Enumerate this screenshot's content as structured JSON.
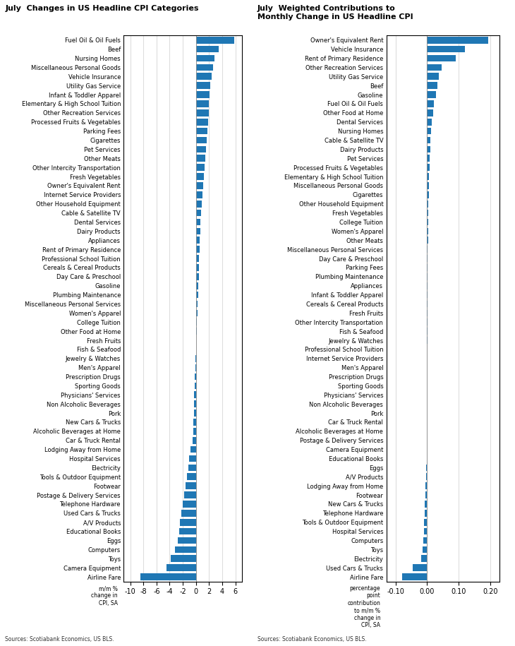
{
  "chart_data": [
    {
      "type": "bar",
      "orientation": "horizontal",
      "title": "July  Changes in US Headline CPI Categories",
      "annotations": [
        "m/m %\nchange in\nCPI, SA",
        "Sources: Scotiabank Economics, US BLS."
      ],
      "categories": [
        "Fuel Oil & Oil Fuels",
        "Beef",
        "Nursing Homes",
        "Miscellaneous Personal Goods",
        "Vehicle Insurance",
        "Utility Gas Service",
        "Infant & Toddler Apparel",
        "Elementary & High School Tuition",
        "Other Recreation Services",
        "Processed Fruits & Vegetables",
        "Parking Fees",
        "Cigarettes",
        "Pet Services",
        "Other Meats",
        "Other Intercity Transportation",
        "Fresh Vegetables",
        "Owner's Equivalent Rent",
        "Internet Service Providers",
        "Other Household Equipment",
        "Cable & Satellite TV",
        "Dental Services",
        "Dairy Products",
        "Appliances",
        "Rent of Primary Residence",
        "Professional School Tuition",
        "Cereals & Cereal Products",
        "Day Care & Preschool",
        "Gasoline",
        "Plumbing Maintenance",
        "Miscellaneous Personal Services",
        "Women's Apparel",
        "College Tuition",
        "Other Food at Home",
        "Fresh Fruits",
        "Fish & Seafood",
        "Jewelry & Watches",
        "Men's Apparel",
        "Prescription Drugs",
        "Sporting Goods",
        "Physicians' Services",
        "Non Alcoholic Beverages",
        "Pork",
        "New Cars & Trucks",
        "Alcoholic Beverages at Home",
        "Car & Truck Rental",
        "Lodging Away from Home",
        "Hospital Services",
        "Electricity",
        "Tools & Outdoor Equipment",
        "Footwear",
        "Postage & Delivery Services",
        "Telephone Hardware",
        "Used Cars & Trucks",
        "A/V Products",
        "Educational Books",
        "Eggs",
        "Computers",
        "Toys",
        "Camera Equipment",
        "Airline Fare"
      ],
      "values": [
        5.8,
        3.5,
        2.8,
        2.6,
        2.4,
        2.2,
        2.1,
        2.0,
        1.9,
        1.8,
        1.7,
        1.6,
        1.5,
        1.4,
        1.3,
        1.2,
        1.1,
        1.0,
        0.9,
        0.8,
        0.7,
        0.65,
        0.6,
        0.55,
        0.5,
        0.45,
        0.4,
        0.35,
        0.3,
        0.25,
        0.2,
        0.15,
        0.1,
        0.05,
        0.0,
        -0.05,
        -0.1,
        -0.15,
        -0.2,
        -0.25,
        -0.3,
        -0.35,
        -0.4,
        -0.45,
        -0.5,
        -0.8,
        -1.0,
        -1.2,
        -1.4,
        -1.6,
        -1.8,
        -2.0,
        -2.2,
        -2.4,
        -2.6,
        -2.8,
        -3.2,
        -3.8,
        -4.5,
        -8.5
      ],
      "xlim": [
        -11,
        7
      ],
      "xticks": [
        -10,
        -8,
        -6,
        -4,
        -2,
        0,
        2,
        4,
        6
      ],
      "grid": true
    },
    {
      "type": "bar",
      "orientation": "horizontal",
      "title": "July  Weighted Contributions to\nMonthly Change in US Headline CPI",
      "annotations": [
        "percentage\npoint\ncontribution\nto m/m %\nchange in\nCPI, SA",
        "Sources: Scotiabank Economics, US BLS."
      ],
      "categories": [
        "Owner's Equivalent Rent",
        "Vehicle Insurance",
        "Rent of Primary Residence",
        "Other Recreation Services",
        "Utility Gas Service",
        "Beef",
        "Gasoline",
        "Fuel Oil & Oil Fuels",
        "Other Food at Home",
        "Dental Services",
        "Nursing Homes",
        "Cable & Satellite TV",
        "Dairy Products",
        "Pet Services",
        "Processed Fruits & Vegetables",
        "Elementary & High School Tuition",
        "Miscellaneous Personal Goods",
        "Cigarettes",
        "Other Household Equipment",
        "Fresh Vegetables",
        "College Tuition",
        "Women's Apparel",
        "Other Meats",
        "Miscellaneous Personal Services",
        "Day Care & Preschool",
        "Parking Fees",
        "Plumbing Maintenance",
        "Appliances",
        "Infant & Toddler Apparel",
        "Cereals & Cereal Products",
        "Fresh Fruits",
        "Other Intercity Transportation",
        "Fish & Seafood",
        "Jewelry & Watches",
        "Professional School Tuition",
        "Internet Service Providers",
        "Men's Apparel",
        "Prescription Drugs",
        "Sporting Goods",
        "Physicians' Services",
        "Non Alcoholic Beverages",
        "Pork",
        "Car & Truck Rental",
        "Alcoholic Beverages at Home",
        "Postage & Delivery Services",
        "Camera Equipment",
        "Educational Books",
        "Eggs",
        "A/V Products",
        "Lodging Away from Home",
        "Footwear",
        "New Cars & Trucks",
        "Telephone Hardware",
        "Tools & Outdoor Equipment",
        "Hospital Services",
        "Computers",
        "Toys",
        "Electricity",
        "Used Cars & Trucks",
        "Airline Fare"
      ],
      "values": [
        0.195,
        0.12,
        0.09,
        0.045,
        0.038,
        0.032,
        0.028,
        0.022,
        0.018,
        0.015,
        0.012,
        0.01,
        0.009,
        0.008,
        0.007,
        0.006,
        0.005,
        0.005,
        0.004,
        0.004,
        0.003,
        0.003,
        0.003,
        0.002,
        0.002,
        0.002,
        0.002,
        0.001,
        0.001,
        0.001,
        0.001,
        0.001,
        0.001,
        0.001,
        0.0,
        0.0,
        0.0,
        0.0,
        0.0,
        0.0,
        -0.001,
        -0.001,
        -0.002,
        -0.002,
        -0.002,
        -0.002,
        -0.002,
        -0.003,
        -0.003,
        -0.005,
        -0.006,
        -0.007,
        -0.008,
        -0.009,
        -0.01,
        -0.012,
        -0.015,
        -0.02,
        -0.045,
        -0.08
      ],
      "xlim": [
        -0.13,
        0.23
      ],
      "xticks": [
        {
          "value": -0.1,
          "label": "-0.10"
        },
        {
          "value": 0.0,
          "label": "0.00"
        },
        {
          "value": 0.1,
          "label": "0.10"
        },
        {
          "value": 0.2,
          "label": "0.20"
        }
      ],
      "grid": true
    }
  ]
}
